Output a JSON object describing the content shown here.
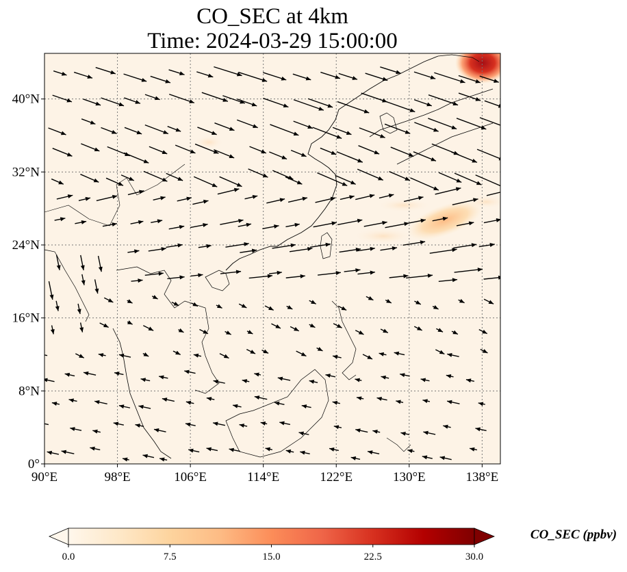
{
  "title": {
    "line1": "CO_SEC at 4km",
    "line2": "Time: 2024-03-29 15:00:00"
  },
  "map": {
    "projection": "PlateCarree",
    "lon_range": [
      90,
      140
    ],
    "lat_range": [
      0,
      45
    ],
    "gridlines": "dotted",
    "x_tick_labels": [
      "90°E",
      "98°E",
      "106°E",
      "114°E",
      "122°E",
      "130°E",
      "138°E"
    ],
    "y_tick_labels": [
      "0°",
      "8°N",
      "16°N",
      "24°N",
      "32°N",
      "40°N"
    ],
    "x_tick_values": [
      90,
      98,
      106,
      114,
      122,
      130,
      138
    ],
    "y_tick_values": [
      0,
      8,
      16,
      24,
      32,
      40
    ],
    "field": "CO_SEC",
    "vector_field": "wind at 4km",
    "colors": {
      "background": "#fdf3e6",
      "hotspot_max": "#a50f15",
      "hotspot_mid": "#ef6548",
      "coastline": "#000000"
    }
  },
  "colorbar": {
    "label": "CO_SEC (ppbv)",
    "colormap": "OrRd",
    "range": [
      0.0,
      30.0
    ],
    "extend": "both",
    "tick_labels": [
      "0.0",
      "7.5",
      "15.0",
      "22.5",
      "30.0"
    ],
    "tick_values": [
      0.0,
      7.5,
      15.0,
      22.5,
      30.0
    ]
  }
}
